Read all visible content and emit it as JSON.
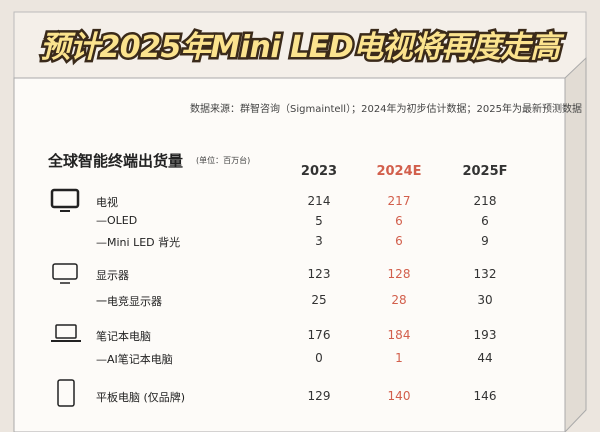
{
  "header": {
    "title": "预计2025年Mini LED电视将再度走高",
    "source": "数据来源：群智咨询（Sigmaintell）；2024年为初步估计数据；2025年为最新预测数据"
  },
  "table": {
    "title": "全球智能终端出货量",
    "unit": "(单位：百万台)",
    "columns": [
      "2023",
      "2024E",
      "2025F"
    ],
    "rows": [
      {
        "label": "电视",
        "values": [
          "214",
          "217",
          "218"
        ]
      },
      {
        "label": "—OLED",
        "values": [
          "5",
          "6",
          "6"
        ]
      },
      {
        "label": "—Mini LED 背光",
        "values": [
          "3",
          "6",
          "9"
        ]
      },
      {
        "label": "显示器",
        "values": [
          "123",
          "128",
          "132"
        ]
      },
      {
        "label": "一电竞显示器",
        "values": [
          "25",
          "28",
          "30"
        ]
      },
      {
        "label": "笔记本电脑",
        "values": [
          "176",
          "184",
          "193"
        ]
      },
      {
        "label": "—AI笔记本电脑",
        "values": [
          "0",
          "1",
          "44"
        ]
      },
      {
        "label": "平板电脑 (仅品牌)",
        "values": [
          "129",
          "140",
          "146"
        ]
      }
    ]
  }
}
